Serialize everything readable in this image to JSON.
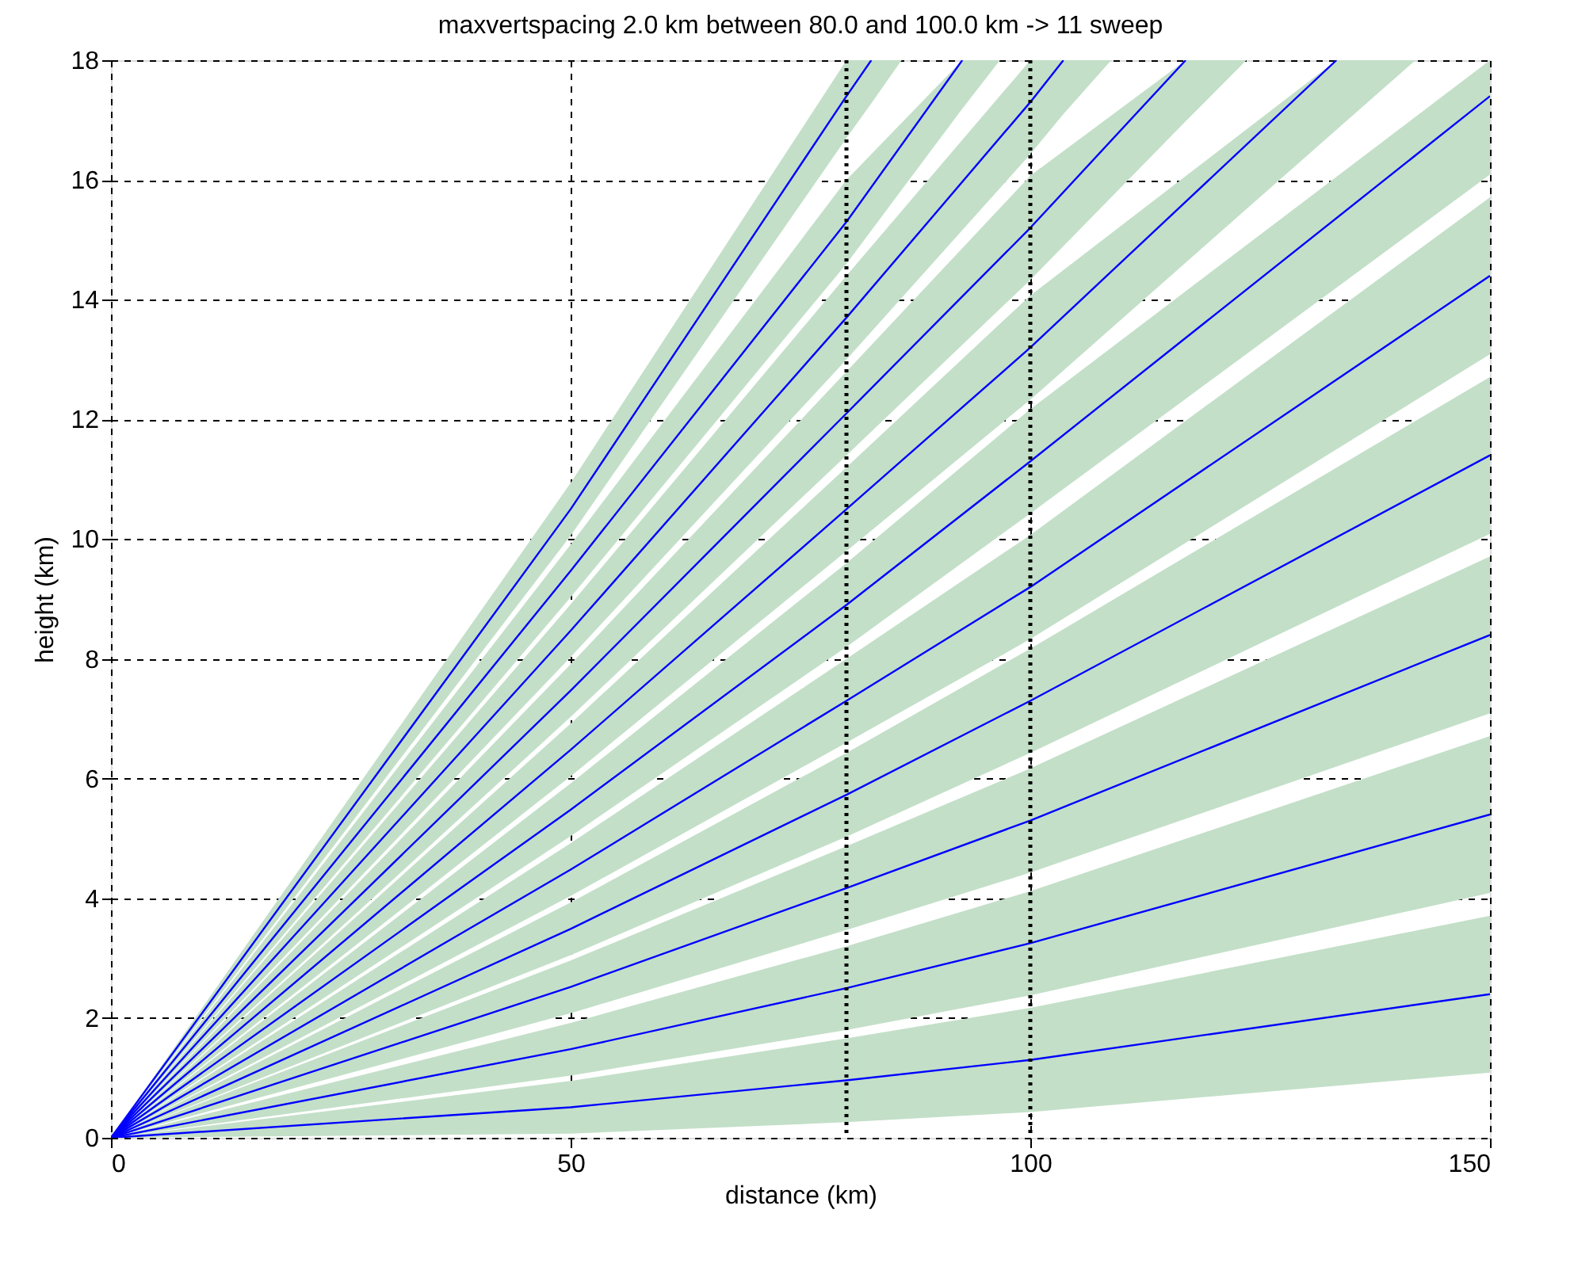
{
  "chart_data": {
    "type": "line",
    "title": "maxvertspacing   2.0 km  between  80.0 and 100.0 km  ->    11 sweep",
    "xlabel": "distance (km)",
    "ylabel": "height (km)",
    "xlim": [
      0,
      150
    ],
    "ylim": [
      0,
      18
    ],
    "xticks": [
      0,
      50,
      100,
      150
    ],
    "yticks": [
      0,
      2,
      4,
      6,
      8,
      10,
      12,
      14,
      16,
      18
    ],
    "grid": true,
    "marker": "none",
    "line_style": "solid",
    "ref_lines": [
      {
        "axis": "x",
        "value": 80,
        "line_style": "dotted"
      },
      {
        "axis": "x",
        "value": 100,
        "line_style": "dotted"
      }
    ],
    "series": [
      {
        "color": "#0000ff",
        "x": [
          0,
          50,
          80,
          100,
          150
        ],
        "values": [
          0,
          0.51,
          0.96,
          1.3,
          2.4
        ],
        "lower": [
          0,
          0.07,
          0.26,
          0.43,
          1.09
        ],
        "upper": [
          0,
          0.95,
          1.66,
          2.17,
          3.71
        ]
      },
      {
        "color": "#0000ff",
        "x": [
          0,
          50,
          80,
          100,
          150
        ],
        "values": [
          0,
          1.48,
          2.5,
          3.25,
          5.4
        ],
        "lower": [
          0,
          1.04,
          1.8,
          2.38,
          4.09
        ],
        "upper": [
          0,
          1.92,
          3.2,
          4.12,
          6.71
        ]
      },
      {
        "color": "#0000ff",
        "x": [
          0,
          50,
          80,
          100,
          150
        ],
        "values": [
          0,
          2.52,
          4.17,
          5.3,
          8.4
        ],
        "lower": [
          0,
          2.08,
          3.47,
          4.43,
          7.09
        ],
        "upper": [
          0,
          2.96,
          4.87,
          6.17,
          9.71
        ]
      },
      {
        "color": "#0000ff",
        "x": [
          0,
          50,
          80,
          100,
          150
        ],
        "values": [
          0,
          3.49,
          5.73,
          7.3,
          11.4
        ],
        "lower": [
          0,
          3.05,
          5.03,
          6.43,
          10.09
        ],
        "upper": [
          0,
          3.93,
          6.43,
          8.17,
          12.71
        ]
      },
      {
        "color": "#0000ff",
        "x": [
          0,
          50,
          80,
          100,
          150
        ],
        "values": [
          0,
          4.48,
          7.3,
          9.2,
          14.4
        ],
        "lower": [
          0,
          4.04,
          6.6,
          8.33,
          13.09
        ],
        "upper": [
          0,
          4.92,
          8.0,
          10.07,
          15.71
        ]
      },
      {
        "color": "#0000ff",
        "x": [
          0,
          50,
          80,
          100,
          150
        ],
        "values": [
          0,
          5.48,
          8.9,
          11.3,
          17.4
        ],
        "lower": [
          0,
          5.04,
          8.2,
          10.43,
          16.09
        ],
        "upper": [
          0,
          5.92,
          9.6,
          12.17,
          18
        ]
      },
      {
        "color": "#0000ff",
        "x": [
          0,
          50,
          80,
          100,
          133.3,
          141.9
        ],
        "values": [
          0,
          6.48,
          10.5,
          13.2,
          18,
          null
        ],
        "lower": [
          0,
          6.04,
          9.8,
          12.33,
          16.84,
          18
        ],
        "upper": [
          0,
          6.92,
          11.2,
          14.07,
          18,
          18
        ]
      },
      {
        "color": "#0000ff",
        "x": [
          0,
          50,
          80,
          100,
          116.9,
          123.5
        ],
        "values": [
          0,
          7.47,
          12.1,
          15.2,
          18,
          null
        ],
        "lower": [
          0,
          7.03,
          11.4,
          14.33,
          16.98,
          18
        ],
        "upper": [
          0,
          7.91,
          12.8,
          16.07,
          18,
          18
        ]
      },
      {
        "color": "#0000ff",
        "x": [
          0,
          50,
          80,
          100,
          103.6,
          108.8
        ],
        "values": [
          0,
          8.47,
          13.7,
          17.3,
          18,
          null
        ],
        "lower": [
          0,
          8.03,
          13.0,
          16.43,
          17.1,
          18
        ],
        "upper": [
          0,
          8.91,
          14.4,
          18,
          18,
          18
        ]
      },
      {
        "color": "#0000ff",
        "x": [
          0,
          50,
          80,
          92.6,
          96.7
        ],
        "values": [
          0,
          9.47,
          15.3,
          18,
          null
        ],
        "lower": [
          0,
          9.03,
          14.6,
          17.19,
          18
        ],
        "upper": [
          0,
          9.91,
          16.0,
          18,
          18
        ]
      },
      {
        "color": "#0000ff",
        "x": [
          0,
          50,
          80,
          82.7,
          86.0
        ],
        "values": [
          0,
          10.5,
          17.4,
          18,
          null
        ],
        "lower": [
          0,
          10.06,
          16.7,
          17.28,
          18
        ],
        "upper": [
          0,
          10.94,
          18,
          18,
          18
        ]
      }
    ]
  }
}
